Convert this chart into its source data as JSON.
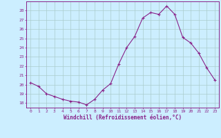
{
  "x": [
    0,
    1,
    2,
    3,
    4,
    5,
    6,
    7,
    8,
    9,
    10,
    11,
    12,
    13,
    14,
    15,
    16,
    17,
    18,
    19,
    20,
    21,
    22,
    23
  ],
  "y": [
    20.2,
    19.8,
    19.0,
    18.7,
    18.4,
    18.2,
    18.1,
    17.8,
    18.4,
    19.4,
    20.1,
    22.2,
    24.0,
    25.2,
    27.2,
    27.8,
    27.6,
    28.5,
    27.6,
    25.1,
    24.5,
    23.4,
    21.8,
    20.5
  ],
  "line_color": "#882288",
  "marker": "+",
  "marker_size": 3.5,
  "bg_color": "#cceeff",
  "grid_color": "#aacccc",
  "axis_color": "#882288",
  "tick_color": "#882288",
  "xlabel": "Windchill (Refroidissement éolien,°C)",
  "ylabel": "",
  "xlim": [
    -0.5,
    23.5
  ],
  "ylim": [
    17.5,
    29.0
  ],
  "yticks": [
    18,
    19,
    20,
    21,
    22,
    23,
    24,
    25,
    26,
    27,
    28
  ],
  "xticks": [
    0,
    1,
    2,
    3,
    4,
    5,
    6,
    7,
    8,
    9,
    10,
    11,
    12,
    13,
    14,
    15,
    16,
    17,
    18,
    19,
    20,
    21,
    22,
    23
  ],
  "spine_color": "#882288",
  "linewidth": 0.8,
  "marker_linewidth": 0.8
}
